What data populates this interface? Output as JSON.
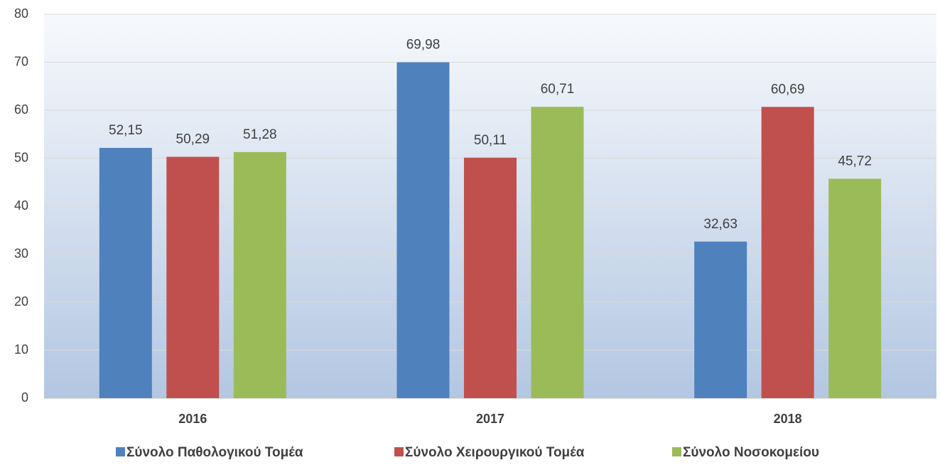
{
  "chart_data": {
    "type": "bar",
    "categories": [
      "2016",
      "2017",
      "2018"
    ],
    "series": [
      {
        "name": "Σύνολο Παθολογικού Τομέα",
        "color": "#4f81bd",
        "values": [
          52.15,
          69.98,
          32.63
        ],
        "value_labels": [
          "52,15",
          "69,98",
          "32,63"
        ]
      },
      {
        "name": "Σύνολο Χειρουργικού Τομέα",
        "color": "#c0504d",
        "values": [
          50.29,
          50.11,
          60.69
        ],
        "value_labels": [
          "50,29",
          "50,11",
          "60,69"
        ]
      },
      {
        "name": "Σύνολο Νοσοκομείου",
        "color": "#9bbb59",
        "values": [
          51.28,
          60.71,
          45.72
        ],
        "value_labels": [
          "51,28",
          "60,71",
          "45,72"
        ]
      }
    ],
    "ylim": [
      0,
      80
    ],
    "yticks": [
      0,
      10,
      20,
      30,
      40,
      50,
      60,
      70,
      80
    ],
    "grid": true,
    "legend": "bottom"
  }
}
